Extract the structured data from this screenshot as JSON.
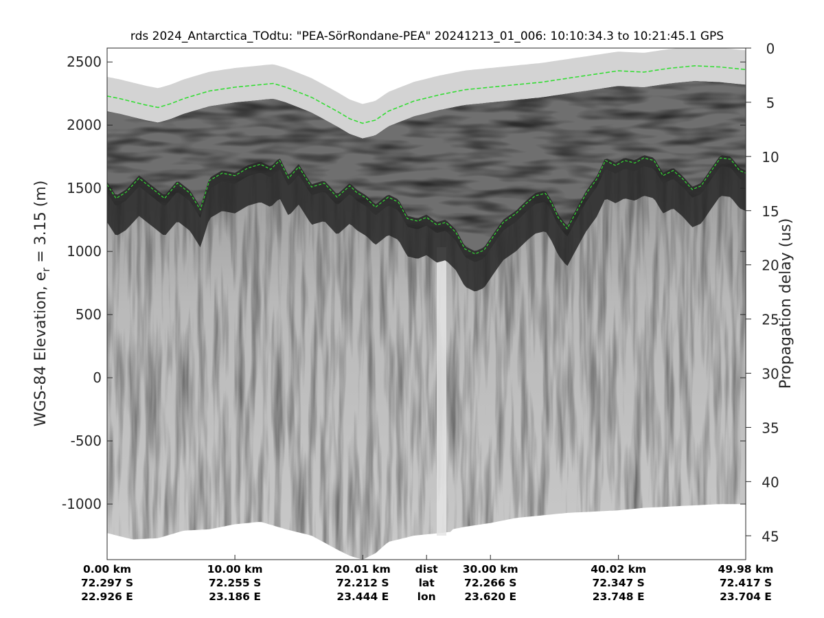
{
  "chart_data": {
    "type": "radar_echogram",
    "title": "rds 2024_Antarctica_TOdtu: \"PEA-SörRondane-PEA\"  20241213_01_006: 10:10:34.3 to 10:21:45.1 GPS",
    "ylabel_left": "WGS-84 Elevation, e",
    "ylabel_left_sub": "r",
    "ylabel_left_suffix": " = 3.15 (m)",
    "ylabel_right": "Propagation delay (us)",
    "left_axis": {
      "ylim": [
        -1440,
        2610
      ],
      "ticks": [
        2500,
        2000,
        1500,
        1000,
        500,
        0,
        -500,
        -1000
      ],
      "tick_labels": [
        "2500",
        "2000",
        "1500",
        "1000",
        "500",
        "0",
        "-500",
        "-1000"
      ]
    },
    "right_axis": {
      "ylim": [
        0,
        47.2
      ],
      "reversed": true,
      "ticks": [
        0,
        5,
        10,
        15,
        20,
        25,
        30,
        35,
        40,
        45
      ],
      "tick_labels": [
        "0",
        "5",
        "10",
        "15",
        "20",
        "25",
        "30",
        "35",
        "40",
        "45"
      ]
    },
    "x_range_km": [
      0,
      49.98
    ],
    "bottom_columns": [
      {
        "dist_km": 0.0,
        "lines": [
          "0.00 km",
          "72.297 S",
          "22.926 E"
        ]
      },
      {
        "dist_km": 10.0,
        "lines": [
          "10.00 km",
          "72.255 S",
          "23.186 E"
        ]
      },
      {
        "dist_km": 20.01,
        "lines": [
          "20.01 km",
          "72.212 S",
          "23.444 E"
        ]
      },
      {
        "dist_km": 25.0,
        "lines": [
          "dist",
          "lat",
          "lon"
        ],
        "is_legend": true
      },
      {
        "dist_km": 30.0,
        "lines": [
          "30.00 km",
          "72.266 S",
          "23.620 E"
        ]
      },
      {
        "dist_km": 40.02,
        "lines": [
          "40.02 km",
          "72.347 S",
          "23.748 E"
        ]
      },
      {
        "dist_km": 49.98,
        "lines": [
          "49.98 km",
          "72.417 S",
          "23.704 E"
        ]
      }
    ],
    "surface_elevation": {
      "x": [
        0,
        1,
        2,
        3,
        4,
        5,
        6,
        8,
        10,
        12,
        13,
        14,
        16,
        18,
        19,
        20,
        21,
        22,
        24,
        26,
        28,
        30,
        32,
        34,
        36,
        38,
        40,
        42,
        44,
        46,
        48,
        49.98
      ],
      "y": [
        2230,
        2210,
        2185,
        2160,
        2140,
        2170,
        2210,
        2270,
        2300,
        2320,
        2330,
        2300,
        2220,
        2110,
        2050,
        2015,
        2040,
        2110,
        2190,
        2240,
        2280,
        2300,
        2320,
        2340,
        2370,
        2400,
        2430,
        2420,
        2450,
        2470,
        2460,
        2440
      ]
    },
    "bed_elevation": {
      "x": [
        0,
        0.7,
        1.5,
        2.5,
        3.5,
        4.5,
        5.5,
        6.5,
        7.3,
        8,
        9,
        10,
        11,
        12,
        12.8,
        13.5,
        14.2,
        15,
        16,
        17,
        18,
        19,
        19.5,
        20.3,
        21,
        22,
        22.8,
        23.5,
        24.3,
        25,
        25.8,
        26.5,
        27.3,
        28,
        28.8,
        29.5,
        30.3,
        31,
        32,
        32.8,
        33.5,
        34.3,
        34.8,
        35.3,
        36,
        36.8,
        37.5,
        38.3,
        39,
        39.8,
        40.5,
        41.3,
        42,
        42.8,
        43.5,
        44.3,
        45,
        45.8,
        46.5,
        47.3,
        48,
        48.8,
        49.5,
        49.98
      ],
      "y": [
        1530,
        1420,
        1470,
        1580,
        1500,
        1420,
        1540,
        1460,
        1330,
        1560,
        1620,
        1600,
        1660,
        1690,
        1650,
        1720,
        1580,
        1670,
        1510,
        1540,
        1430,
        1520,
        1470,
        1420,
        1350,
        1430,
        1390,
        1260,
        1240,
        1270,
        1210,
        1230,
        1150,
        1020,
        980,
        1010,
        1130,
        1230,
        1300,
        1380,
        1440,
        1460,
        1380,
        1270,
        1180,
        1330,
        1460,
        1570,
        1720,
        1680,
        1720,
        1700,
        1740,
        1720,
        1600,
        1640,
        1580,
        1490,
        1520,
        1640,
        1740,
        1730,
        1640,
        1620
      ]
    },
    "data_bottom_elevation": {
      "x": [
        0,
        2,
        4,
        6,
        8,
        10,
        12,
        14,
        16,
        18,
        19,
        20,
        21,
        22,
        24,
        26,
        26.9,
        27.0,
        28,
        30,
        32,
        34,
        35,
        36,
        38,
        40,
        42,
        44,
        46,
        48,
        49.98
      ],
      "y": [
        -1230,
        -1280,
        -1270,
        -1210,
        -1200,
        -1160,
        -1140,
        -1200,
        -1250,
        -1360,
        -1410,
        -1440,
        -1390,
        -1300,
        -1250,
        -1230,
        -1220,
        -1200,
        -1180,
        -1150,
        -1110,
        -1090,
        -1080,
        -1070,
        -1060,
        -1050,
        -1030,
        -1020,
        -1010,
        -1000,
        -1000
      ]
    }
  }
}
